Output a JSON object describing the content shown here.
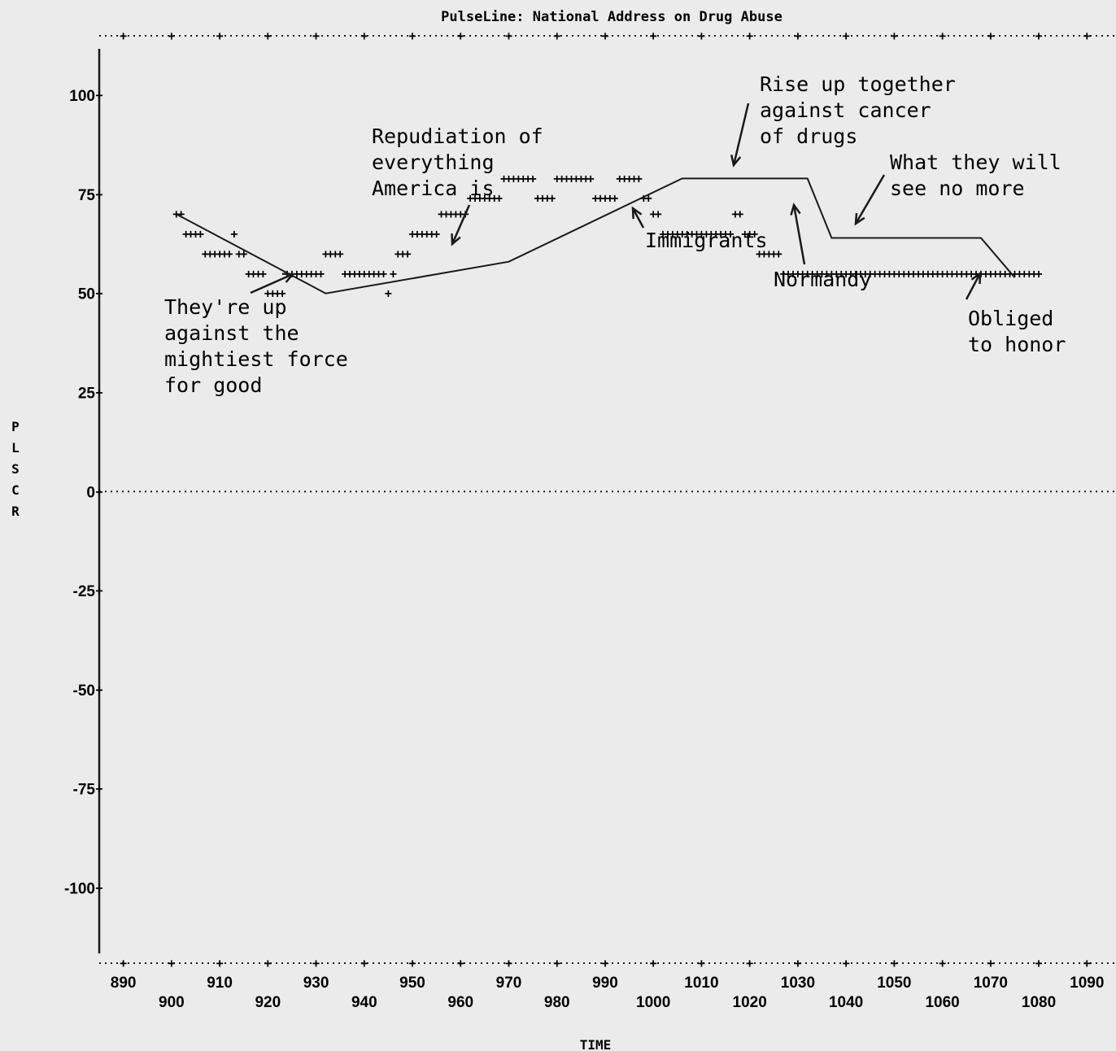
{
  "chart_data": {
    "type": "scatter",
    "title": "PulseLine: National Address on Drug Abuse",
    "xlabel": "TIME",
    "ylabel": "PLSCR",
    "xlim": [
      885,
      1094
    ],
    "ylim": [
      -119,
      115
    ],
    "y_ticks": [
      100,
      75,
      50,
      25,
      0,
      -25,
      -50,
      -75,
      -100
    ],
    "y_tick_labels": [
      "100",
      "75",
      "50",
      "25",
      "0",
      "-25",
      "-50",
      "-75",
      "-100"
    ],
    "x_ticks": [
      890,
      900,
      910,
      920,
      930,
      940,
      950,
      960,
      970,
      980,
      990,
      1000,
      1010,
      1020,
      1030,
      1040,
      1050,
      1060,
      1070,
      1080,
      1090
    ],
    "x_tick_labels": [
      "890",
      "900",
      "910",
      "920",
      "930",
      "940",
      "950",
      "960",
      "970",
      "980",
      "990",
      "1000",
      "1010",
      "1020",
      "1030",
      "1040",
      "1050",
      "1060",
      "1070",
      "1080",
      "1090"
    ],
    "series": [
      {
        "marker": "+",
        "x": [
          901,
          902,
          903,
          904,
          905,
          906,
          907,
          908,
          909,
          910,
          911,
          912,
          913,
          914,
          915,
          916,
          917,
          918,
          919,
          920,
          921,
          922,
          923,
          924,
          925,
          926,
          927,
          928,
          929,
          930,
          931,
          932,
          933,
          934,
          935,
          936,
          937,
          938,
          939,
          940,
          941,
          942,
          943,
          944,
          945,
          946,
          947,
          948,
          949,
          950,
          951,
          952,
          953,
          954,
          955,
          956,
          957,
          958,
          959,
          960,
          961,
          962,
          963,
          964,
          965,
          966,
          967,
          968,
          969,
          970,
          971,
          972,
          973,
          974,
          975,
          976,
          977,
          978,
          979,
          980,
          981,
          982,
          983,
          984,
          985,
          986,
          987,
          988,
          989,
          990,
          991,
          992,
          993,
          994,
          995,
          996,
          997,
          998,
          999,
          1000,
          1001,
          1002,
          1003,
          1004,
          1005,
          1006,
          1007,
          1008,
          1009,
          1010,
          1011,
          1012,
          1013,
          1014,
          1015,
          1016,
          1017,
          1018,
          1019,
          1020,
          1021,
          1022,
          1023,
          1024,
          1025,
          1026,
          1027,
          1028,
          1029,
          1030,
          1031,
          1032,
          1033,
          1034,
          1035,
          1036,
          1037,
          1038,
          1039,
          1040,
          1041,
          1042,
          1043,
          1044,
          1045,
          1046,
          1047,
          1048,
          1049,
          1050,
          1051,
          1052,
          1053,
          1054,
          1055,
          1056,
          1057,
          1058,
          1059,
          1060,
          1061,
          1062,
          1063,
          1064,
          1065,
          1066,
          1067,
          1068,
          1069,
          1070,
          1071,
          1072,
          1073,
          1074,
          1075,
          1076,
          1077,
          1078,
          1079,
          1080
        ],
        "y": [
          70,
          70,
          65,
          65,
          65,
          65,
          60,
          60,
          60,
          60,
          60,
          60,
          65,
          60,
          60,
          55,
          55,
          55,
          55,
          50,
          50,
          50,
          50,
          55,
          55,
          55,
          55,
          55,
          55,
          55,
          55,
          60,
          60,
          60,
          60,
          55,
          55,
          55,
          55,
          55,
          55,
          55,
          55,
          55,
          50,
          55,
          60,
          60,
          60,
          65,
          65,
          65,
          65,
          65,
          65,
          70,
          70,
          70,
          70,
          70,
          70,
          74,
          74,
          74,
          74,
          74,
          74,
          74,
          79,
          79,
          79,
          79,
          79,
          79,
          79,
          74,
          74,
          74,
          74,
          79,
          79,
          79,
          79,
          79,
          79,
          79,
          79,
          74,
          74,
          74,
          74,
          74,
          79,
          79,
          79,
          79,
          79,
          74,
          74,
          70,
          70,
          65,
          65,
          65,
          65,
          65,
          65,
          65,
          65,
          65,
          65,
          65,
          65,
          65,
          65,
          65,
          70,
          70,
          65,
          65,
          65,
          60,
          60,
          60,
          60,
          60,
          55,
          55,
          55,
          55,
          55,
          55,
          55,
          55,
          55,
          55,
          55,
          55,
          55,
          55,
          55,
          55,
          55,
          55,
          55,
          55,
          55,
          55,
          55,
          55,
          55,
          55,
          55,
          55,
          55,
          55,
          55,
          55,
          55,
          55,
          55,
          55,
          55,
          55,
          55,
          55,
          55,
          55,
          55,
          55,
          55,
          55,
          55,
          55,
          55,
          55,
          55,
          55,
          55,
          55
        ]
      },
      {
        "name": "",
        "type": "line",
        "x": [
          901,
          932,
          970,
          1006,
          1032,
          1037,
          1068,
          1075
        ],
        "y": [
          70,
          50,
          58,
          79,
          79,
          64,
          64,
          54
        ]
      }
    ],
    "annotations": [
      {
        "lines": [
          "They're up",
          "against the",
          "mightiest force",
          "for good"
        ]
      },
      {
        "lines": [
          "Repudiation of",
          "everything",
          "America is"
        ]
      },
      {
        "lines": [
          "Immigrants"
        ]
      },
      {
        "lines": [
          "Rise up together",
          "against cancer",
          "of drugs"
        ]
      },
      {
        "lines": [
          "Normandy"
        ]
      },
      {
        "lines": [
          "What they will",
          "see no more"
        ]
      },
      {
        "lines": [
          "Obliged",
          "to honor"
        ]
      }
    ]
  }
}
